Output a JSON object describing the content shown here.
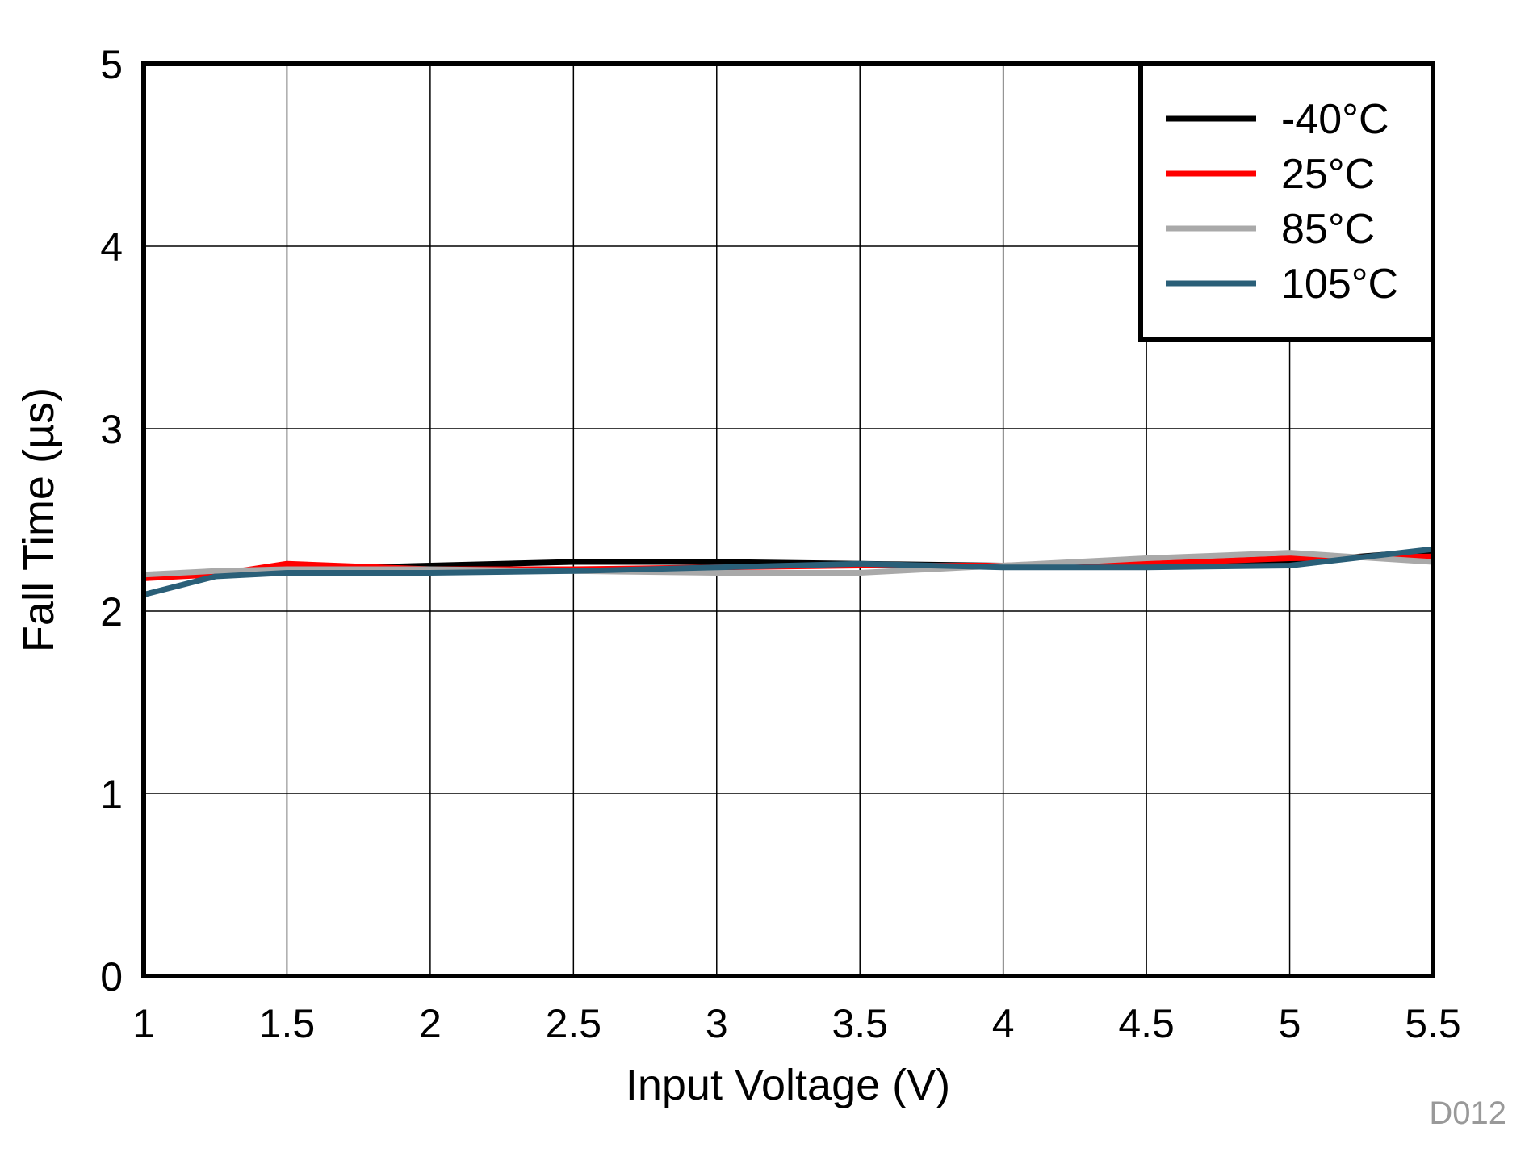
{
  "chart_data": {
    "type": "line",
    "title": "",
    "xlabel": "Input Voltage (V)",
    "ylabel": "Fall Time (µs)",
    "xlim": [
      1,
      5.5
    ],
    "ylim": [
      0,
      5
    ],
    "xticks": [
      "1",
      "1.5",
      "2",
      "2.5",
      "3",
      "3.5",
      "4",
      "4.5",
      "5",
      "5.5"
    ],
    "yticks": [
      "0",
      "1",
      "2",
      "3",
      "4",
      "5"
    ],
    "grid": true,
    "legend_position": "top-right",
    "x": [
      1,
      1.25,
      1.5,
      2,
      2.5,
      3,
      3.5,
      4,
      4.5,
      5,
      5.5
    ],
    "series": [
      {
        "name": "-40°C",
        "color": "#000000",
        "values": [
          2.2,
          2.21,
          2.23,
          2.25,
          2.27,
          2.27,
          2.26,
          2.25,
          2.26,
          2.27,
          2.33
        ]
      },
      {
        "name": "25°C",
        "color": "#ff0000",
        "values": [
          2.18,
          2.2,
          2.26,
          2.23,
          2.23,
          2.24,
          2.25,
          2.25,
          2.26,
          2.29,
          2.3
        ]
      },
      {
        "name": "85°C",
        "color": "#a9a9a9",
        "values": [
          2.2,
          2.22,
          2.23,
          2.23,
          2.22,
          2.21,
          2.21,
          2.25,
          2.29,
          2.32,
          2.27
        ]
      },
      {
        "name": "105°C",
        "color": "#2a5f78",
        "values": [
          2.09,
          2.19,
          2.21,
          2.21,
          2.22,
          2.24,
          2.26,
          2.24,
          2.24,
          2.25,
          2.34
        ]
      }
    ],
    "watermark": "D012"
  }
}
